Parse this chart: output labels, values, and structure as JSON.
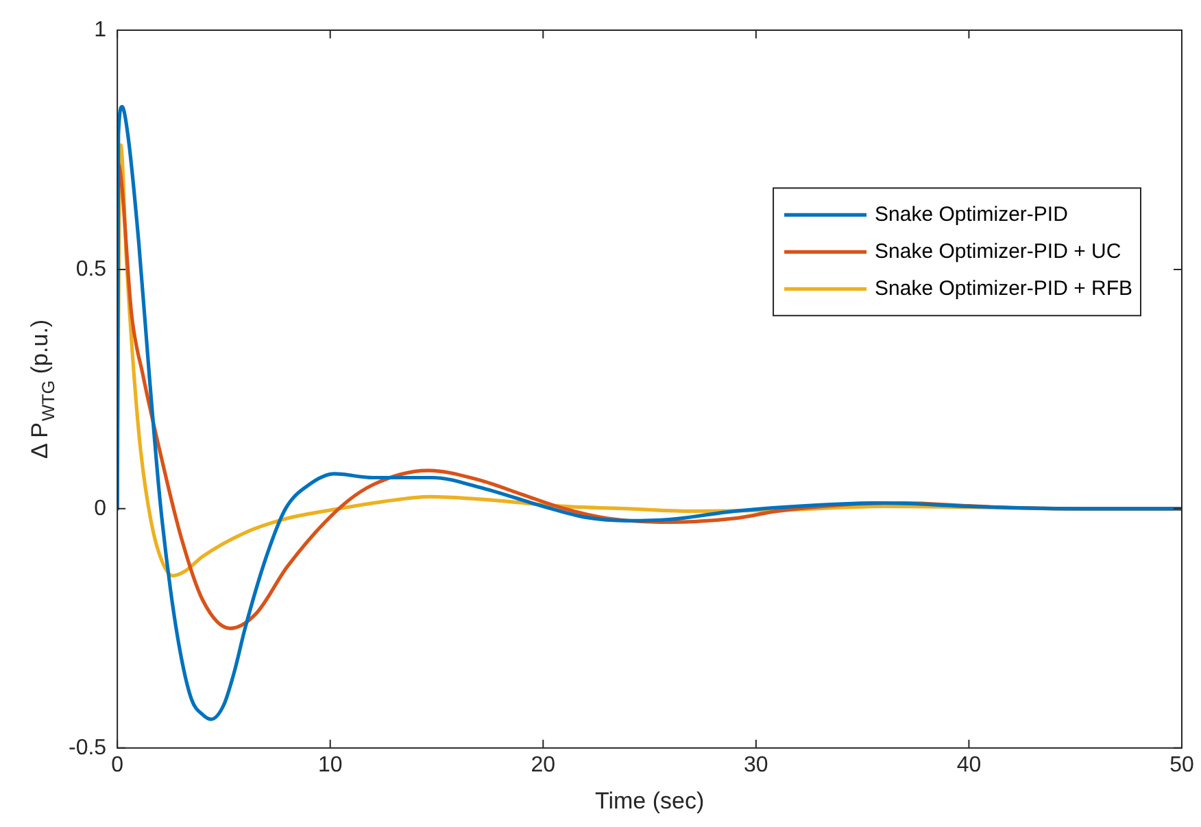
{
  "chart_data": {
    "type": "line",
    "xlabel": "Time (sec)",
    "ylabel": "Δ P$_{WTG}$ (p.u.)",
    "xlim": [
      0,
      50
    ],
    "xticks": [
      0,
      10,
      20,
      30,
      40,
      50
    ],
    "ylim": [
      -0.5,
      1
    ],
    "yticks": [
      -0.5,
      0,
      0.5,
      1
    ],
    "grid": false,
    "legend": "right",
    "marker": "none",
    "line_style": "solid",
    "series": [
      {
        "name": "Snake Optimizer-PID",
        "color": "#0072bd",
        "x": [
          0,
          0.05,
          0.22,
          0.5,
          1,
          1.5,
          2,
          2.5,
          3,
          3.5,
          4,
          4.4,
          5,
          5.5,
          6,
          7,
          7.9,
          9,
          10.2,
          12,
          14.8,
          17,
          20,
          22,
          24,
          26,
          29,
          33,
          36,
          40,
          45,
          50
        ],
        "values": [
          0,
          0.78,
          0.84,
          0.78,
          0.56,
          0.28,
          0.02,
          -0.17,
          -0.31,
          -0.4,
          -0.43,
          -0.44,
          -0.41,
          -0.34,
          -0.25,
          -0.1,
          0,
          0.05,
          0.073,
          0.065,
          0.065,
          0.045,
          0.005,
          -0.018,
          -0.025,
          -0.022,
          -0.005,
          0.008,
          0.012,
          0.005,
          0,
          0
        ]
      },
      {
        "name": "Snake Optimizer-PID + UC",
        "color": "#d95319",
        "x": [
          0,
          0.05,
          0.2,
          0.66,
          1.2,
          2,
          3,
          4,
          5.3,
          6.5,
          8,
          10.4,
          12,
          14.6,
          17,
          19,
          21,
          23,
          26,
          29,
          31,
          34,
          37,
          40,
          42,
          46,
          50
        ],
        "values": [
          0,
          0.72,
          0.68,
          0.41,
          0.28,
          0.12,
          -0.06,
          -0.19,
          -0.25,
          -0.22,
          -0.12,
          0,
          0.05,
          0.08,
          0.06,
          0.03,
          0,
          -0.02,
          -0.028,
          -0.02,
          -0.005,
          0.008,
          0.012,
          0.006,
          0.002,
          0,
          0
        ]
      },
      {
        "name": "Snake Optimizer-PID + RFB",
        "color": "#edb120",
        "x": [
          0,
          0.1,
          0.16,
          0.44,
          0.8,
          1.1,
          1.6,
          2.1,
          2.6,
          3.2,
          4,
          6,
          8,
          10.4,
          12.5,
          14.7,
          17,
          21,
          24,
          27,
          31,
          36,
          40,
          45,
          50
        ],
        "values": [
          0,
          0.7,
          0.76,
          0.51,
          0.27,
          0.12,
          -0.03,
          -0.11,
          -0.14,
          -0.13,
          -0.1,
          -0.05,
          -0.02,
          0,
          0.015,
          0.025,
          0.02,
          0.005,
          0,
          -0.005,
          -0.003,
          0.005,
          0.003,
          0,
          0
        ]
      }
    ]
  }
}
